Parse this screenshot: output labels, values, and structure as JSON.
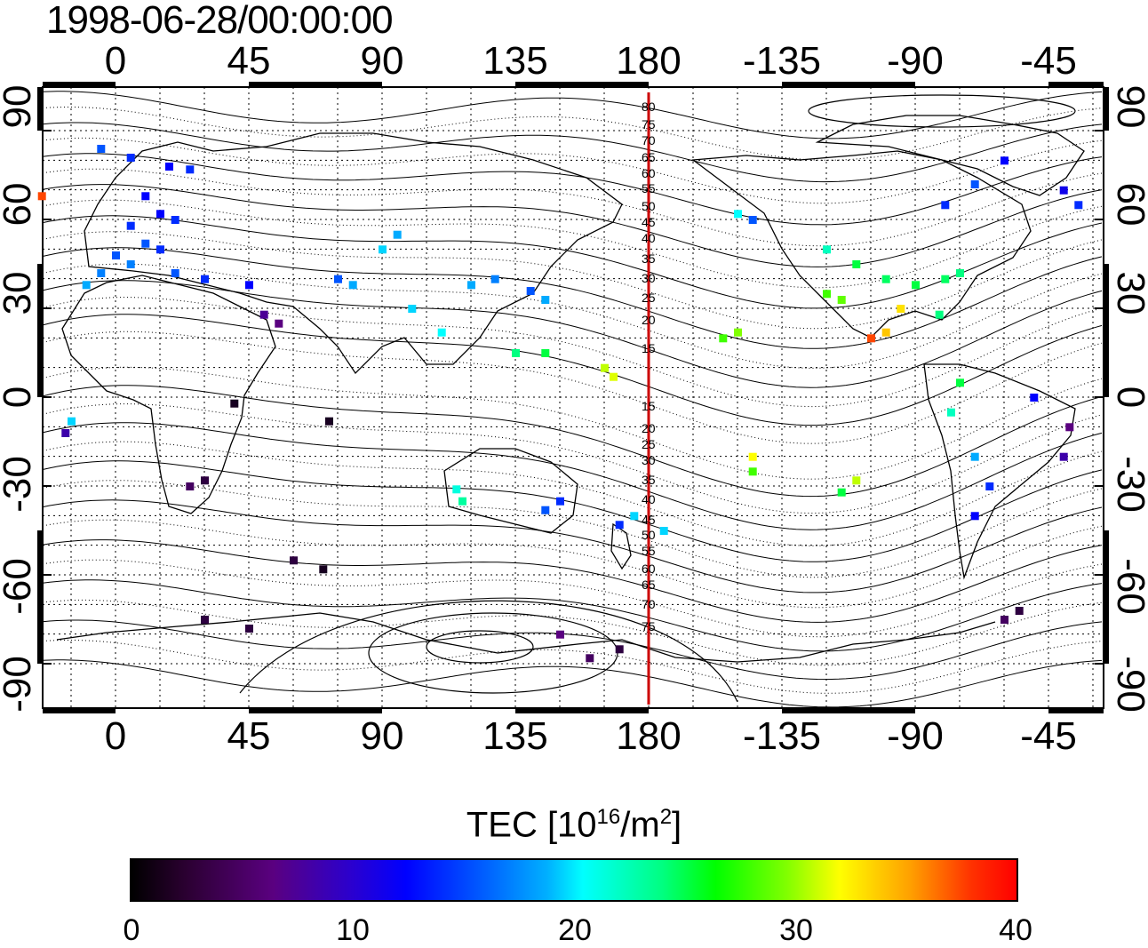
{
  "title": "1998-06-28/00:00:00",
  "map": {
    "lon_ticks": [
      "0",
      "45",
      "90",
      "135",
      "180",
      "-135",
      "-90",
      "-45"
    ],
    "lat_ticks": [
      "90",
      "60",
      "30",
      "0",
      "-30",
      "-60",
      "-90"
    ],
    "dip_labels": [
      "80",
      "75",
      "70",
      "65",
      "60",
      "55",
      "50",
      "45",
      "40",
      "35",
      "30",
      "25",
      "20",
      "15",
      "15",
      "20",
      "25",
      "30",
      "35",
      "40",
      "45",
      "50",
      "55",
      "60",
      "65",
      "70",
      "75"
    ],
    "meridian_line_color": "#cc0000",
    "grid": true
  },
  "colorbar": {
    "label_prefix": "TEC  [10",
    "label_exp1": "16",
    "label_mid": "/m",
    "label_exp2": "2",
    "label_suffix": "]",
    "ticks": [
      "0",
      "10",
      "20",
      "30",
      "40"
    ],
    "range": [
      0,
      40
    ],
    "colors": [
      "#000000",
      "#5a0080",
      "#0000ff",
      "#00ffff",
      "#00ff00",
      "#ffff00",
      "#ff0000"
    ]
  },
  "chart_data": {
    "type": "heatmap",
    "title": "1998-06-28/00:00:00",
    "colorbar_range": [
      0,
      40
    ],
    "points": [
      {
        "lon": -5,
        "lat": 84,
        "tec": 12
      },
      {
        "lon": 5,
        "lat": 81,
        "tec": 11
      },
      {
        "lon": 18,
        "lat": 78,
        "tec": 10
      },
      {
        "lon": 25,
        "lat": 77,
        "tec": 11
      },
      {
        "lon": 10,
        "lat": 68,
        "tec": 10
      },
      {
        "lon": 15,
        "lat": 62,
        "tec": 10
      },
      {
        "lon": 20,
        "lat": 60,
        "tec": 11
      },
      {
        "lon": 5,
        "lat": 58,
        "tec": 11
      },
      {
        "lon": 10,
        "lat": 52,
        "tec": 12
      },
      {
        "lon": 15,
        "lat": 50,
        "tec": 11
      },
      {
        "lon": 0,
        "lat": 48,
        "tec": 12
      },
      {
        "lon": 5,
        "lat": 45,
        "tec": 13
      },
      {
        "lon": -5,
        "lat": 42,
        "tec": 13
      },
      {
        "lon": -10,
        "lat": 38,
        "tec": 14
      },
      {
        "lon": 20,
        "lat": 42,
        "tec": 12
      },
      {
        "lon": 30,
        "lat": 40,
        "tec": 11
      },
      {
        "lon": 45,
        "lat": 38,
        "tec": 10
      },
      {
        "lon": 75,
        "lat": 40,
        "tec": 12
      },
      {
        "lon": 80,
        "lat": 38,
        "tec": 14
      },
      {
        "lon": 90,
        "lat": 50,
        "tec": 15
      },
      {
        "lon": 95,
        "lat": 55,
        "tec": 14
      },
      {
        "lon": 120,
        "lat": 38,
        "tec": 14
      },
      {
        "lon": 128,
        "lat": 40,
        "tec": 13
      },
      {
        "lon": 140,
        "lat": 36,
        "tec": 12
      },
      {
        "lon": 145,
        "lat": 33,
        "tec": 14
      },
      {
        "lon": 110,
        "lat": 22,
        "tec": 16
      },
      {
        "lon": 100,
        "lat": 30,
        "tec": 15
      },
      {
        "lon": 50,
        "lat": 28,
        "tec": 5
      },
      {
        "lon": 55,
        "lat": 25,
        "tec": 4
      },
      {
        "lon": 40,
        "lat": -2,
        "tec": 1
      },
      {
        "lon": 72,
        "lat": -8,
        "tec": 1
      },
      {
        "lon": -15,
        "lat": -8,
        "tec": 15
      },
      {
        "lon": -17,
        "lat": -12,
        "tec": 6
      },
      {
        "lon": 25,
        "lat": -30,
        "tec": 3
      },
      {
        "lon": 30,
        "lat": -28,
        "tec": 2
      },
      {
        "lon": 60,
        "lat": -55,
        "tec": 2
      },
      {
        "lon": 70,
        "lat": -58,
        "tec": 1
      },
      {
        "lon": 30,
        "lat": -75,
        "tec": 2
      },
      {
        "lon": 45,
        "lat": -78,
        "tec": 2
      },
      {
        "lon": 160,
        "lat": -88,
        "tec": 3
      },
      {
        "lon": 170,
        "lat": -85,
        "tec": 2
      },
      {
        "lon": 150,
        "lat": -80,
        "tec": 4
      },
      {
        "lon": 115,
        "lat": -31,
        "tec": 17
      },
      {
        "lon": 117,
        "lat": -35,
        "tec": 19
      },
      {
        "lon": 145,
        "lat": -38,
        "tec": 12
      },
      {
        "lon": 150,
        "lat": -35,
        "tec": 11
      },
      {
        "lon": 170,
        "lat": -43,
        "tec": 11
      },
      {
        "lon": 175,
        "lat": -40,
        "tec": 15
      },
      {
        "lon": 185,
        "lat": -45,
        "tec": 15
      },
      {
        "lon": 135,
        "lat": 15,
        "tec": 20
      },
      {
        "lon": 145,
        "lat": 15,
        "tec": 22
      },
      {
        "lon": 165,
        "lat": 10,
        "tec": 30
      },
      {
        "lon": 168,
        "lat": 7,
        "tec": 31
      },
      {
        "lon": -155,
        "lat": 20,
        "tec": 26
      },
      {
        "lon": -150,
        "lat": 22,
        "tec": 28
      },
      {
        "lon": -145,
        "lat": -20,
        "tec": 32
      },
      {
        "lon": -145,
        "lat": -25,
        "tec": 26
      },
      {
        "lon": -110,
        "lat": -28,
        "tec": 30
      },
      {
        "lon": -115,
        "lat": -32,
        "tec": 22
      },
      {
        "lon": -150,
        "lat": 62,
        "tec": 16
      },
      {
        "lon": -145,
        "lat": 60,
        "tec": 12
      },
      {
        "lon": -120,
        "lat": 50,
        "tec": 18
      },
      {
        "lon": -110,
        "lat": 45,
        "tec": 22
      },
      {
        "lon": -100,
        "lat": 40,
        "tec": 21
      },
      {
        "lon": -90,
        "lat": 38,
        "tec": 22
      },
      {
        "lon": -80,
        "lat": 40,
        "tec": 21
      },
      {
        "lon": -75,
        "lat": 42,
        "tec": 20
      },
      {
        "lon": -120,
        "lat": 35,
        "tec": 26
      },
      {
        "lon": -115,
        "lat": 33,
        "tec": 27
      },
      {
        "lon": -105,
        "lat": 20,
        "tec": 38
      },
      {
        "lon": -100,
        "lat": 22,
        "tec": 34
      },
      {
        "lon": -95,
        "lat": 30,
        "tec": 33
      },
      {
        "lon": -82,
        "lat": 28,
        "tec": 20
      },
      {
        "lon": -75,
        "lat": 5,
        "tec": 22
      },
      {
        "lon": -78,
        "lat": -5,
        "tec": 18
      },
      {
        "lon": -70,
        "lat": -20,
        "tec": 14
      },
      {
        "lon": -65,
        "lat": -30,
        "tec": 11
      },
      {
        "lon": -70,
        "lat": -40,
        "tec": 10
      },
      {
        "lon": -60,
        "lat": -75,
        "tec": 3
      },
      {
        "lon": -55,
        "lat": -72,
        "tec": 2
      },
      {
        "lon": -38,
        "lat": -10,
        "tec": 4
      },
      {
        "lon": -40,
        "lat": -20,
        "tec": 6
      },
      {
        "lon": -50,
        "lat": 0,
        "tec": 10
      },
      {
        "lon": -60,
        "lat": 80,
        "tec": 10
      },
      {
        "lon": -40,
        "lat": 70,
        "tec": 9
      },
      {
        "lon": -25,
        "lat": 68,
        "tec": 38
      },
      {
        "lon": -35,
        "lat": 65,
        "tec": 11
      },
      {
        "lon": -80,
        "lat": 65,
        "tec": 11
      },
      {
        "lon": -70,
        "lat": 72,
        "tec": 12
      }
    ]
  }
}
